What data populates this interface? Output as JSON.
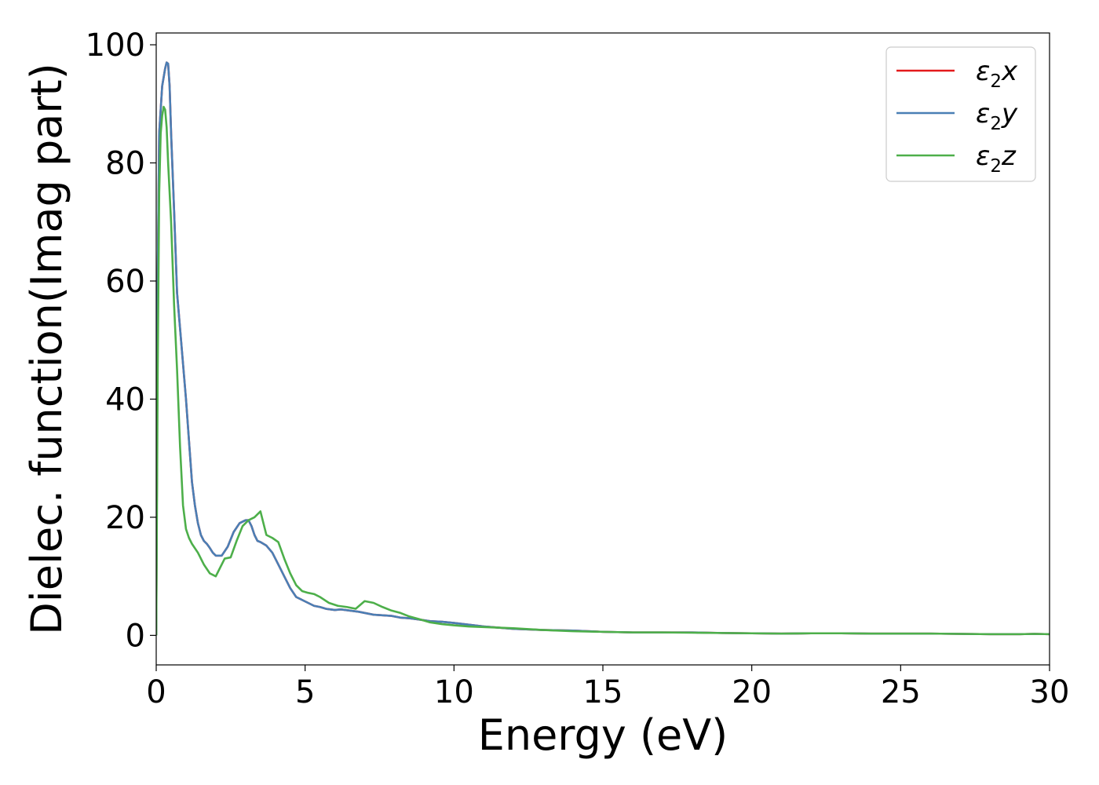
{
  "chart_data": {
    "type": "line",
    "title": "",
    "xlabel": "Energy (eV)",
    "ylabel": "Dielec. function(Imag part)",
    "xlim": [
      0,
      30
    ],
    "ylim": [
      -5,
      102
    ],
    "xticks": [
      0,
      5,
      10,
      15,
      20,
      25,
      30
    ],
    "yticks": [
      0,
      20,
      40,
      60,
      80,
      100
    ],
    "grid": false,
    "legend_position": "top-right",
    "series": [
      {
        "name": "ε2x",
        "legend_base": "ε",
        "legend_sub": "2",
        "legend_suffix": "x",
        "color": "#e41a1c",
        "x": [
          0,
          0.05,
          0.1,
          0.2,
          0.3,
          0.35,
          0.4,
          0.45,
          0.5,
          0.6,
          0.7,
          0.8,
          0.9,
          1.0,
          1.1,
          1.2,
          1.3,
          1.4,
          1.5,
          1.6,
          1.7,
          1.8,
          1.9,
          2.0,
          2.2,
          2.4,
          2.6,
          2.8,
          3.0,
          3.1,
          3.2,
          3.3,
          3.4,
          3.5,
          3.7,
          3.9,
          4.1,
          4.3,
          4.5,
          4.7,
          4.9,
          5.1,
          5.3,
          5.5,
          5.7,
          6.0,
          6.2,
          6.5,
          6.8,
          7.0,
          7.3,
          7.6,
          7.9,
          8.2,
          8.5,
          8.8,
          9.2,
          9.6,
          10.0,
          10.5,
          11.0,
          11.5,
          12.0,
          13.0,
          14.0,
          15.0,
          16.0,
          17.0,
          18.0,
          19.0,
          20.0,
          21.0,
          22.0,
          23.0,
          24.0,
          25.0,
          26.0,
          27.0,
          28.0,
          29.0,
          29.5,
          30.0
        ],
        "y": [
          0,
          60,
          85,
          93,
          96,
          97,
          96.8,
          93,
          85,
          72,
          58,
          52,
          46,
          40,
          33,
          26,
          22,
          19,
          17,
          16,
          15.5,
          14.8,
          14,
          13.5,
          13.5,
          15,
          17.5,
          19,
          19.5,
          19.5,
          18.5,
          17,
          16,
          15.8,
          15.2,
          14,
          12,
          10,
          8,
          6.5,
          6,
          5.5,
          5,
          4.8,
          4.5,
          4.3,
          4.4,
          4.2,
          4,
          3.8,
          3.5,
          3.4,
          3.3,
          3,
          2.9,
          2.7,
          2.4,
          2.3,
          2.1,
          1.8,
          1.5,
          1.3,
          1.1,
          0.9,
          0.8,
          0.6,
          0.5,
          0.5,
          0.5,
          0.4,
          0.35,
          0.3,
          0.35,
          0.35,
          0.3,
          0.3,
          0.3,
          0.25,
          0.2,
          0.2,
          0.25,
          0.2
        ]
      },
      {
        "name": "ε2y",
        "legend_base": "ε",
        "legend_sub": "2",
        "legend_suffix": "y",
        "color": "#4a7fb5",
        "x": [
          0,
          0.05,
          0.1,
          0.2,
          0.3,
          0.35,
          0.4,
          0.45,
          0.5,
          0.6,
          0.7,
          0.8,
          0.9,
          1.0,
          1.1,
          1.2,
          1.3,
          1.4,
          1.5,
          1.6,
          1.7,
          1.8,
          1.9,
          2.0,
          2.2,
          2.4,
          2.6,
          2.8,
          3.0,
          3.1,
          3.2,
          3.3,
          3.4,
          3.5,
          3.7,
          3.9,
          4.1,
          4.3,
          4.5,
          4.7,
          4.9,
          5.1,
          5.3,
          5.5,
          5.7,
          6.0,
          6.2,
          6.5,
          6.8,
          7.0,
          7.3,
          7.6,
          7.9,
          8.2,
          8.5,
          8.8,
          9.2,
          9.6,
          10.0,
          10.5,
          11.0,
          11.5,
          12.0,
          13.0,
          14.0,
          15.0,
          16.0,
          17.0,
          18.0,
          19.0,
          20.0,
          21.0,
          22.0,
          23.0,
          24.0,
          25.0,
          26.0,
          27.0,
          28.0,
          29.0,
          29.5,
          30.0
        ],
        "y": [
          0,
          60,
          85,
          93,
          96,
          97,
          96.8,
          93,
          85,
          72,
          58,
          52,
          46,
          40,
          33,
          26,
          22,
          19,
          17,
          16,
          15.5,
          14.8,
          14,
          13.5,
          13.5,
          15,
          17.5,
          19,
          19.5,
          19.5,
          18.5,
          17,
          16,
          15.8,
          15.2,
          14,
          12,
          10,
          8,
          6.5,
          6,
          5.5,
          5,
          4.8,
          4.5,
          4.3,
          4.4,
          4.2,
          4,
          3.8,
          3.5,
          3.4,
          3.3,
          3,
          2.9,
          2.7,
          2.4,
          2.3,
          2.1,
          1.8,
          1.5,
          1.3,
          1.1,
          0.9,
          0.8,
          0.6,
          0.5,
          0.5,
          0.5,
          0.4,
          0.35,
          0.3,
          0.35,
          0.35,
          0.3,
          0.3,
          0.3,
          0.25,
          0.2,
          0.2,
          0.25,
          0.2
        ]
      },
      {
        "name": "ε2z",
        "legend_base": "ε",
        "legend_sub": "2",
        "legend_suffix": "z",
        "color": "#4daf4a",
        "x": [
          0,
          0.05,
          0.1,
          0.15,
          0.2,
          0.25,
          0.3,
          0.35,
          0.4,
          0.5,
          0.6,
          0.7,
          0.8,
          0.9,
          1.0,
          1.1,
          1.2,
          1.4,
          1.6,
          1.8,
          2.0,
          2.1,
          2.3,
          2.5,
          2.7,
          2.9,
          3.1,
          3.3,
          3.5,
          3.6,
          3.7,
          3.9,
          4.1,
          4.3,
          4.5,
          4.7,
          4.9,
          5.1,
          5.3,
          5.5,
          5.8,
          6.1,
          6.4,
          6.7,
          7.0,
          7.3,
          7.6,
          7.9,
          8.2,
          8.5,
          8.8,
          9.2,
          9.6,
          10.0,
          10.5,
          11.0,
          11.5,
          12.0,
          13.0,
          14.0,
          15.0,
          16.0,
          17.0,
          18.0,
          19.0,
          20.0,
          21.0,
          22.0,
          23.0,
          24.0,
          25.0,
          26.0,
          27.0,
          28.0,
          29.0,
          29.5,
          30.0
        ],
        "y": [
          0,
          45,
          75,
          85,
          88,
          89.5,
          89,
          86,
          80,
          70,
          56,
          45,
          32,
          22,
          18,
          16.5,
          15.5,
          14,
          12,
          10.5,
          10,
          11,
          13,
          13.2,
          16,
          18.5,
          19.5,
          20,
          21,
          19,
          17,
          16.5,
          15.8,
          13,
          10.5,
          8.5,
          7.5,
          7.2,
          7,
          6.5,
          5.5,
          5,
          4.8,
          4.5,
          5.8,
          5.5,
          4.8,
          4.2,
          3.8,
          3.2,
          2.8,
          2.2,
          1.9,
          1.7,
          1.5,
          1.4,
          1.3,
          1.2,
          0.9,
          0.7,
          0.6,
          0.5,
          0.5,
          0.45,
          0.4,
          0.35,
          0.3,
          0.35,
          0.35,
          0.3,
          0.3,
          0.3,
          0.25,
          0.2,
          0.2,
          0.25,
          0.2
        ]
      }
    ]
  }
}
